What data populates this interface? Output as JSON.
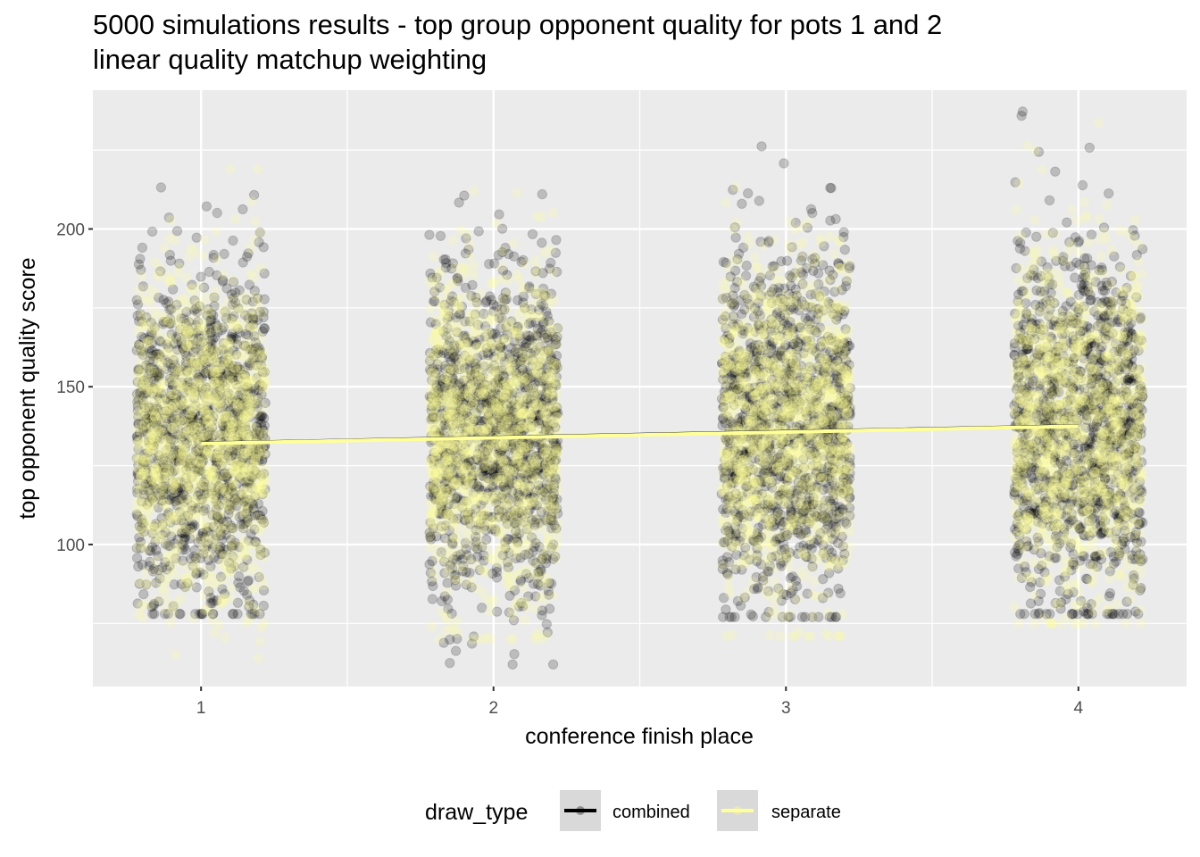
{
  "chart_data": {
    "type": "scatter",
    "title": "5000 simulations results - top group opponent quality for pots 1 and 2",
    "subtitle": "linear quality matchup weighting",
    "xlabel": "conference finish place",
    "ylabel": "top opponent quality score",
    "x_ticks": [
      "1",
      "2",
      "3",
      "4"
    ],
    "y_ticks": [
      100,
      150,
      200
    ],
    "xlim": [
      0.63,
      4.37
    ],
    "ylim": [
      55,
      244
    ],
    "grid": true,
    "legend": {
      "title": "draw_type",
      "position": "bottom",
      "entries": [
        "combined",
        "separate"
      ]
    },
    "series": [
      {
        "name": "combined",
        "color": "#000000",
        "point_alpha": 0.2,
        "jitter_width": 0.22,
        "groups": [
          {
            "x": 1,
            "mean": 135,
            "sd": 26,
            "min": 78,
            "max": 220
          },
          {
            "x": 2,
            "mean": 136,
            "sd": 26,
            "min": 62,
            "max": 211
          },
          {
            "x": 3,
            "mean": 138,
            "sd": 27,
            "min": 77,
            "max": 231
          },
          {
            "x": 4,
            "mean": 139,
            "sd": 28,
            "min": 78,
            "max": 239
          }
        ],
        "trend": {
          "x": [
            1,
            4
          ],
          "y": [
            132.3,
            137.8
          ]
        }
      },
      {
        "name": "separate",
        "color": "#FFFF99",
        "point_alpha": 0.2,
        "jitter_width": 0.22,
        "groups": [
          {
            "x": 1,
            "mean": 134,
            "sd": 26,
            "min": 64,
            "max": 219
          },
          {
            "x": 2,
            "mean": 136,
            "sd": 26,
            "min": 70,
            "max": 212
          },
          {
            "x": 3,
            "mean": 137,
            "sd": 27,
            "min": 71,
            "max": 226
          },
          {
            "x": 4,
            "mean": 138,
            "sd": 28,
            "min": 75,
            "max": 239
          }
        ],
        "trend": {
          "x": [
            1,
            4
          ],
          "y": [
            132.0,
            137.5
          ]
        }
      }
    ]
  }
}
